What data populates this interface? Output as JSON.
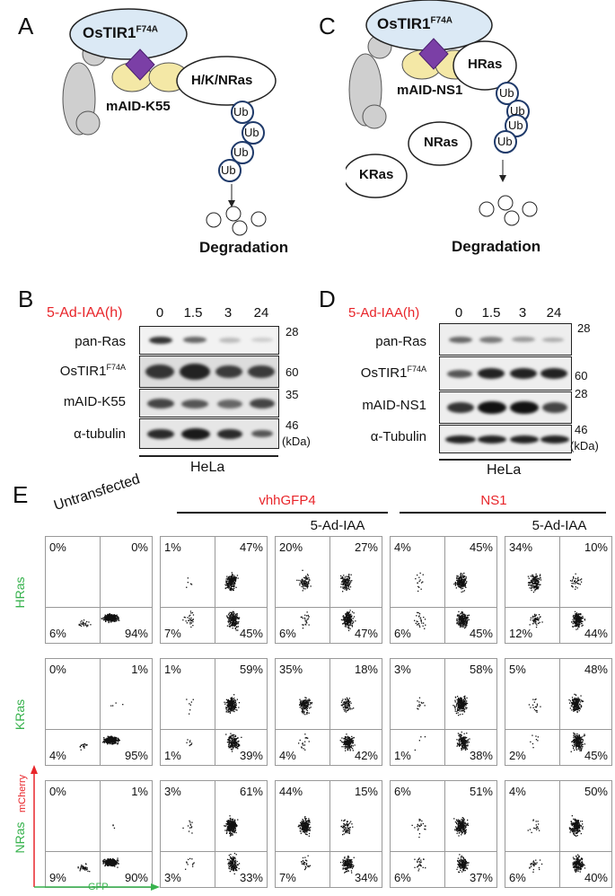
{
  "panels": {
    "A": "A",
    "B": "B",
    "C": "C",
    "D": "D",
    "E": "E"
  },
  "schematic_A": {
    "tir": "OsTIR1",
    "tir_sup": "F74A",
    "target": "H/K/NRas",
    "tag": "mAID-K55",
    "ub": "Ub",
    "degradation": "Degradation"
  },
  "schematic_C": {
    "tir": "OsTIR1",
    "tir_sup": "F74A",
    "target": "HRas",
    "tag": "mAID-NS1",
    "other1": "NRas",
    "other2": "KRas",
    "ub": "Ub",
    "degradation": "Degradation"
  },
  "blot_B": {
    "treatment": "5-Ad-IAA(h)",
    "lanes": [
      "0",
      "1.5",
      "3",
      "24"
    ],
    "rows": [
      {
        "label": "pan-Ras",
        "marker": "28"
      },
      {
        "label": "OsTIR1",
        "sup": "F74A",
        "marker": "60"
      },
      {
        "label": "mAID-K55",
        "marker": "35"
      },
      {
        "label": "α-tubulin",
        "marker": "46"
      }
    ],
    "kda": "(kDa)",
    "cell": "HeLa"
  },
  "blot_D": {
    "treatment": "5-Ad-IAA(h)",
    "lanes": [
      "0",
      "1.5",
      "3",
      "24"
    ],
    "rows": [
      {
        "label": "pan-Ras",
        "marker": "28"
      },
      {
        "label": "OsTIR1",
        "sup": "F74A",
        "marker": "60"
      },
      {
        "label": "mAID-NS1",
        "marker": "28"
      },
      {
        "label": "α-Tubulin",
        "marker": "46"
      }
    ],
    "kda": "(kDa)",
    "cell": "HeLa"
  },
  "flow": {
    "col_untransfected": "Untransfected",
    "group1": "vhhGFP4",
    "group2": "NS1",
    "treat": "5-Ad-IAA",
    "rows": [
      "HRas",
      "KRas",
      "NRas"
    ],
    "y_axis": "mCherry",
    "x_axis": "GFP",
    "quadrants": [
      [
        [
          "0%",
          "0%",
          "6%",
          "94%"
        ],
        [
          "1%",
          "47%",
          "7%",
          "45%"
        ],
        [
          "20%",
          "27%",
          "6%",
          "47%"
        ],
        [
          "4%",
          "45%",
          "6%",
          "45%"
        ],
        [
          "34%",
          "10%",
          "12%",
          "44%"
        ]
      ],
      [
        [
          "0%",
          "1%",
          "4%",
          "95%"
        ],
        [
          "1%",
          "59%",
          "1%",
          "39%"
        ],
        [
          "35%",
          "18%",
          "4%",
          "42%"
        ],
        [
          "3%",
          "58%",
          "1%",
          "38%"
        ],
        [
          "5%",
          "48%",
          "2%",
          "45%"
        ]
      ],
      [
        [
          "0%",
          "1%",
          "9%",
          "90%"
        ],
        [
          "3%",
          "61%",
          "3%",
          "33%"
        ],
        [
          "44%",
          "15%",
          "7%",
          "34%"
        ],
        [
          "6%",
          "51%",
          "6%",
          "37%"
        ],
        [
          "4%",
          "50%",
          "6%",
          "40%"
        ]
      ]
    ]
  }
}
